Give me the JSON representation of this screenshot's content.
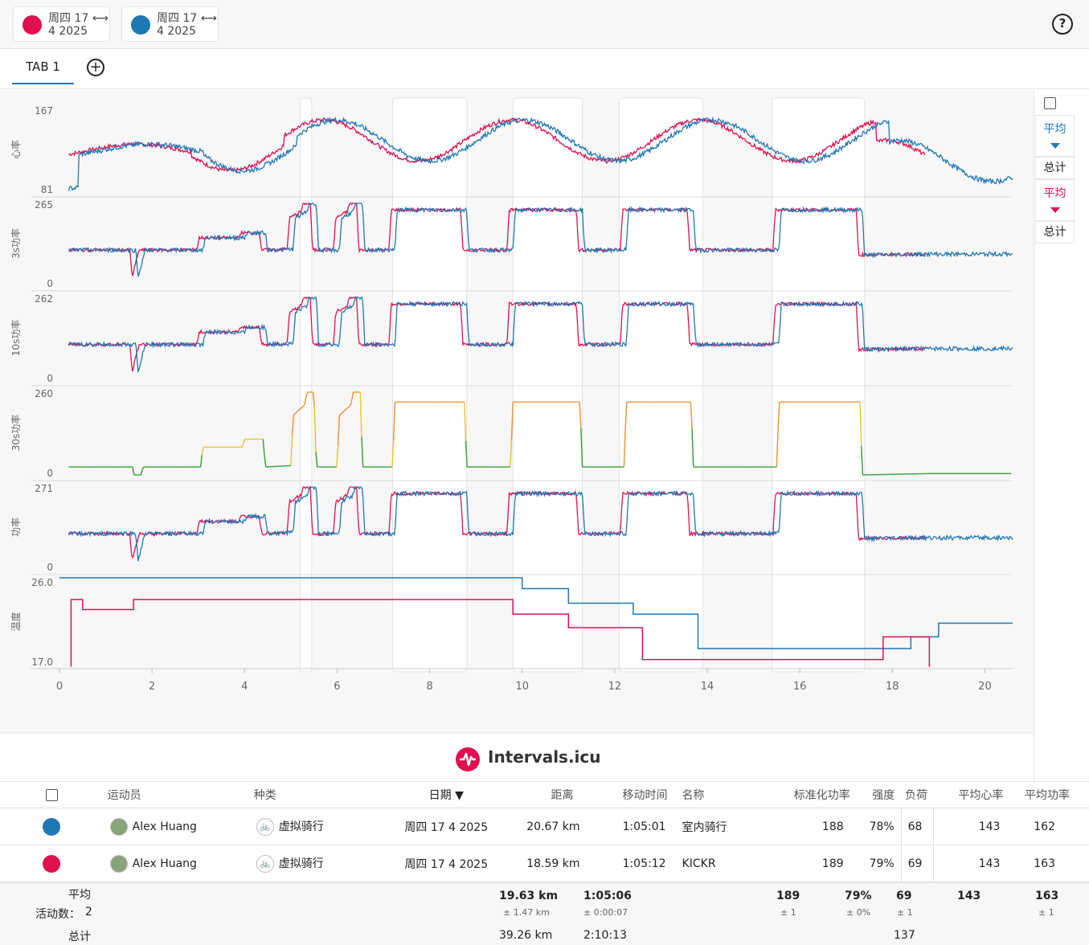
{
  "header": {
    "chips": [
      {
        "line1": "周四 17 ⟷",
        "line2": "4 2025",
        "color": "#e0104f"
      },
      {
        "line1": "周四 17 ⟷",
        "line2": "4 2025",
        "color": "#1f77b4"
      }
    ],
    "help_icon": "question-circle-icon"
  },
  "tabs": [
    {
      "label": "TAB 1"
    }
  ],
  "add_tab_icon": "plus-circle-icon",
  "chart_data": {
    "type": "line",
    "xlabel": "",
    "xticks": [
      "0",
      "2",
      "4",
      "6",
      "8",
      "10",
      "12",
      "14",
      "16",
      "18",
      "20"
    ],
    "xlim": [
      0,
      20.6
    ],
    "panels": [
      {
        "label": "心率",
        "ymax_label": "167",
        "ymin_label": "81"
      },
      {
        "label": "3s功率",
        "ymax_label": "265",
        "ymin_label": "0"
      },
      {
        "label": "10s功率",
        "ymax_label": "262",
        "ymin_label": "0"
      },
      {
        "label": "30s功率",
        "ymax_label": "260",
        "ymin_label": "0"
      },
      {
        "label": "功率",
        "ymax_label": "271",
        "ymin_label": "0"
      },
      {
        "label": "温度",
        "ymax_label": "26.0",
        "ymin_label": "17.0"
      }
    ],
    "series_colors": {
      "red": "#e0104f",
      "blue": "#1f77b4"
    }
  },
  "sidebar": {
    "avg_blue": "平均",
    "total_blue": "总计",
    "avg_red": "平均",
    "total_red": "总计"
  },
  "brand": {
    "name": "Intervals.icu"
  },
  "table": {
    "headers": {
      "athlete": "运动员",
      "type": "种类",
      "date": "日期 ▼",
      "distance": "距离",
      "moving": "移动时间",
      "name": "名称",
      "np": "标准化功率",
      "intensity": "强度",
      "load": "负荷",
      "avg_hr": "平均心率",
      "avg_power": "平均功率"
    },
    "rows": [
      {
        "color": "#1f77b4",
        "athlete": "Alex Huang",
        "type": "虚拟骑行",
        "date": "周四 17 4 2025",
        "distance": "20.67 km",
        "moving": "1:05:01",
        "name": "室内骑行",
        "np": "188",
        "intensity": "78%",
        "load": "68",
        "avg_hr": "143",
        "avg_power": "162"
      },
      {
        "color": "#e0104f",
        "athlete": "Alex Huang",
        "type": "虚拟骑行",
        "date": "周四 17 4 2025",
        "distance": "18.59 km",
        "moving": "1:05:12",
        "name": "KICKR",
        "np": "189",
        "intensity": "79%",
        "load": "69",
        "avg_hr": "143",
        "avg_power": "163"
      }
    ]
  },
  "footer": {
    "avg_label": "平均",
    "count_label": "活动数：",
    "count": "2",
    "total_label": "总计",
    "avg_distance": "19.63 km",
    "avg_distance_sd": "± 1.47 km",
    "avg_moving": "1:05:06",
    "avg_moving_sd": "± 0:00:07",
    "avg_np": "189",
    "avg_np_sd": "± 1",
    "avg_intensity": "79%",
    "avg_intensity_sd": "± 0%",
    "avg_load": "69",
    "avg_load_sd": "± 1",
    "avg_hr": "143",
    "avg_power": "163",
    "avg_power_sd": "± 1",
    "total_distance": "39.26 km",
    "total_moving": "2:10:13",
    "total_load": "137"
  }
}
